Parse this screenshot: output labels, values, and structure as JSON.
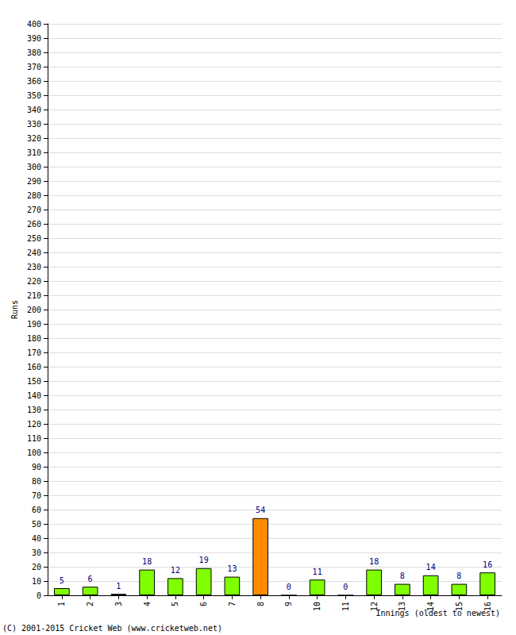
{
  "chart_data": {
    "type": "bar",
    "y_label": "Runs",
    "x_label": "Innings (oldest to newest)",
    "annotations": [
      "(C) 2001-2015 Cricket Web (www.cricketweb.net)"
    ],
    "categories": [
      "1",
      "2",
      "3",
      "4",
      "5",
      "6",
      "7",
      "8",
      "9",
      "10",
      "11",
      "12",
      "13",
      "14",
      "15",
      "16"
    ],
    "values": [
      5,
      6,
      1,
      18,
      12,
      19,
      13,
      54,
      0,
      11,
      0,
      18,
      8,
      14,
      8,
      16
    ],
    "colors": [
      "#80ff00",
      "#80ff00",
      "#80ff00",
      "#80ff00",
      "#80ff00",
      "#80ff00",
      "#80ff00",
      "#ff8c00",
      "#80ff00",
      "#80ff00",
      "#80ff00",
      "#80ff00",
      "#80ff00",
      "#80ff00",
      "#80ff00",
      "#80ff00"
    ],
    "ylim": [
      0,
      400
    ],
    "yticks": [
      0,
      10,
      20,
      30,
      40,
      50,
      60,
      70,
      80,
      90,
      100,
      110,
      120,
      130,
      140,
      150,
      160,
      170,
      180,
      190,
      200,
      210,
      220,
      230,
      240,
      250,
      260,
      270,
      280,
      290,
      300,
      310,
      320,
      330,
      340,
      350,
      360,
      370,
      380,
      390,
      400
    ],
    "grid": true,
    "data_labels": true
  }
}
